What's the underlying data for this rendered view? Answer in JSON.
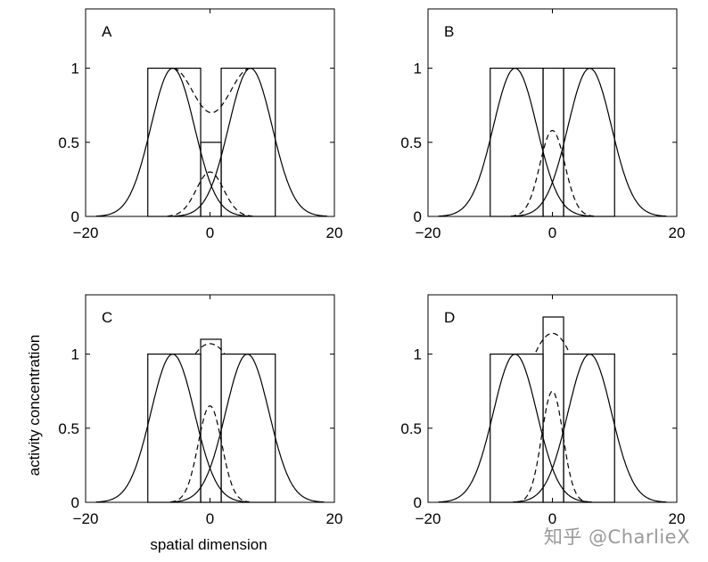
{
  "figure": {
    "ylabel": "activity concentration",
    "xlabel": "spatial dimension",
    "watermark": "知乎 @CharlieX"
  },
  "chart_data": [
    {
      "type": "line",
      "panel": "A",
      "xlim": [
        -20,
        20
      ],
      "ylim": [
        0,
        1.4
      ],
      "xticks": [
        -20,
        0,
        20
      ],
      "xtick_labels": [
        "−20",
        "0",
        "20"
      ],
      "yticks": [
        0,
        0.5,
        1
      ],
      "ytick_labels": [
        "0",
        "0.5",
        "1"
      ],
      "rectangles": [
        {
          "name": "left-input",
          "x0": -10,
          "x1": -1.5,
          "height": 1
        },
        {
          "name": "center-input",
          "x0": -1.5,
          "x1": 1.8,
          "height": 0.5
        },
        {
          "name": "right-input",
          "x0": 1.8,
          "x1": 10.5,
          "height": 1
        }
      ],
      "series": [
        {
          "name": "left-response",
          "style": "solid",
          "amplitude": 1,
          "center": -6,
          "width": 3.5
        },
        {
          "name": "right-response",
          "style": "solid",
          "amplitude": 1,
          "center": 6.5,
          "width": 3.5
        },
        {
          "name": "center-response",
          "style": "dashed",
          "amplitude": 0.3,
          "center": 0,
          "width": 2.2
        },
        {
          "name": "sum-response",
          "style": "dashed",
          "type": "sum",
          "min_at_center": 0.7
        }
      ]
    },
    {
      "type": "line",
      "panel": "B",
      "xlim": [
        -20,
        20
      ],
      "ylim": [
        0,
        1.4
      ],
      "xticks": [
        -20,
        0,
        20
      ],
      "xtick_labels": [
        "−20",
        "0",
        "20"
      ],
      "yticks": [
        0,
        0.5,
        1
      ],
      "ytick_labels": [
        "0",
        "0.5",
        "1"
      ],
      "rectangles": [
        {
          "name": "left-input",
          "x0": -10,
          "x1": -1.5,
          "height": 1
        },
        {
          "name": "center-input",
          "x0": -1.5,
          "x1": 1.8,
          "height": 1
        },
        {
          "name": "right-input",
          "x0": 1.8,
          "x1": 10,
          "height": 1
        }
      ],
      "series": [
        {
          "name": "left-response",
          "style": "solid",
          "amplitude": 1,
          "center": -6,
          "width": 3.5
        },
        {
          "name": "right-response",
          "style": "solid",
          "amplitude": 1,
          "center": 6,
          "width": 3.5
        },
        {
          "name": "center-response",
          "style": "dashed",
          "amplitude": 0.58,
          "center": 0,
          "width": 2.0
        }
      ]
    },
    {
      "type": "line",
      "panel": "C",
      "xlim": [
        -20,
        20
      ],
      "ylim": [
        0,
        1.4
      ],
      "xticks": [
        -20,
        0,
        20
      ],
      "xtick_labels": [
        "−20",
        "0",
        "20"
      ],
      "yticks": [
        0,
        0.5,
        1
      ],
      "ytick_labels": [
        "0",
        "0.5",
        "1"
      ],
      "rectangles": [
        {
          "name": "left-input",
          "x0": -10,
          "x1": -1.5,
          "height": 1
        },
        {
          "name": "center-input",
          "x0": -1.5,
          "x1": 1.8,
          "height": 1.1
        },
        {
          "name": "right-input",
          "x0": 1.8,
          "x1": 10.5,
          "height": 1
        }
      ],
      "series": [
        {
          "name": "left-response",
          "style": "solid",
          "amplitude": 1,
          "center": -6,
          "width": 3.5
        },
        {
          "name": "right-response",
          "style": "solid",
          "amplitude": 1,
          "center": 6,
          "width": 3.5
        },
        {
          "name": "center-response",
          "style": "dashed",
          "amplitude": 0.65,
          "center": 0,
          "width": 1.9
        },
        {
          "name": "broad-response",
          "style": "dashed",
          "amplitude": 1.07,
          "center": 0,
          "width": 6.5,
          "clip": 1.0
        }
      ]
    },
    {
      "type": "line",
      "panel": "D",
      "xlim": [
        -20,
        20
      ],
      "ylim": [
        0,
        1.4
      ],
      "xticks": [
        -20,
        0,
        20
      ],
      "xtick_labels": [
        "−20",
        "0",
        "20"
      ],
      "yticks": [
        0,
        0.5,
        1
      ],
      "ytick_labels": [
        "0",
        "0.5",
        "1"
      ],
      "rectangles": [
        {
          "name": "left-input",
          "x0": -10,
          "x1": -1.5,
          "height": 1
        },
        {
          "name": "center-input",
          "x0": -1.5,
          "x1": 1.8,
          "height": 1.25
        },
        {
          "name": "right-input",
          "x0": 1.8,
          "x1": 10,
          "height": 1
        }
      ],
      "series": [
        {
          "name": "left-response",
          "style": "solid",
          "amplitude": 1,
          "center": -6,
          "width": 3.5
        },
        {
          "name": "right-response",
          "style": "solid",
          "amplitude": 1,
          "center": 6,
          "width": 3.5
        },
        {
          "name": "center-response",
          "style": "dashed",
          "amplitude": 0.75,
          "center": 0,
          "width": 1.7
        },
        {
          "name": "broad-response",
          "style": "dashed",
          "amplitude": 1.14,
          "center": 0,
          "width": 5.5,
          "clip": 1.0
        }
      ]
    }
  ]
}
